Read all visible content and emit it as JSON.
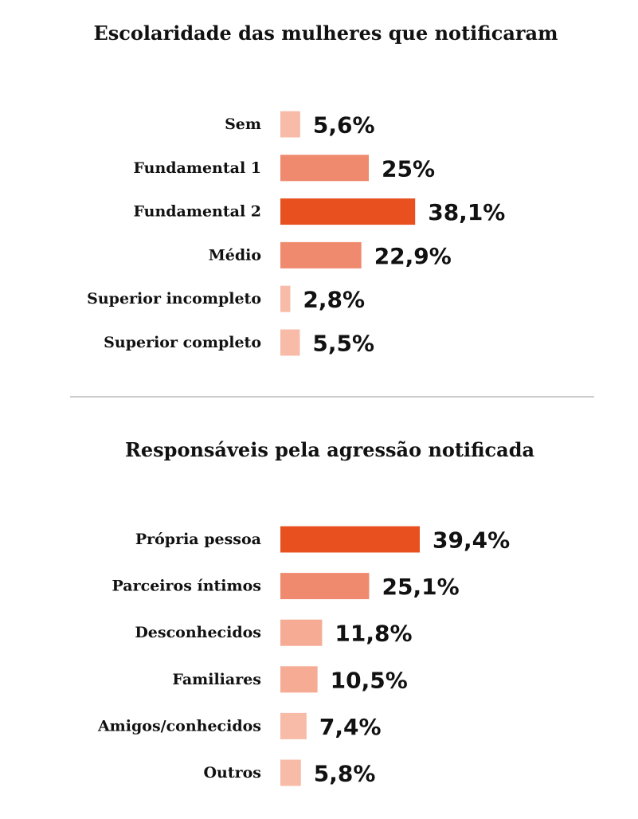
{
  "chart_data": [
    {
      "type": "bar",
      "orientation": "horizontal",
      "title": "Escolaridade das mulheres que notificaram",
      "categories": [
        "Sem",
        "Fundamental 1",
        "Fundamental 2",
        "Médio",
        "Superior incompleto",
        "Superior completo"
      ],
      "values": [
        5.6,
        25,
        38.1,
        22.9,
        2.8,
        5.5
      ],
      "value_labels": [
        "5,6%",
        "25%",
        "38,1%",
        "22,9%",
        "2,8%",
        "5,5%"
      ],
      "bar_colors": [
        "#f8bba8",
        "#f08a6e",
        "#e8501f",
        "#f08a6e",
        "#f8bba8",
        "#f8bba8"
      ],
      "xlim": [
        0,
        40
      ],
      "grid": false
    },
    {
      "type": "bar",
      "orientation": "horizontal",
      "title": "Responsáveis pela agressão notificada",
      "categories": [
        "Própria pessoa",
        "Parceiros íntimos",
        "Desconhecidos",
        "Familiares",
        "Amigos/conhecidos",
        "Outros"
      ],
      "values": [
        39.4,
        25.1,
        11.8,
        10.5,
        7.4,
        5.8
      ],
      "value_labels": [
        "39,4%",
        "25,1%",
        "11,8%",
        "10,5%",
        "7,4%",
        "5,8%"
      ],
      "bar_colors": [
        "#e8501f",
        "#f08a6e",
        "#f6ac94",
        "#f6ac94",
        "#f8bba8",
        "#f8bba8"
      ],
      "xlim": [
        0,
        40
      ],
      "grid": false
    }
  ],
  "divider_color": "#999999"
}
